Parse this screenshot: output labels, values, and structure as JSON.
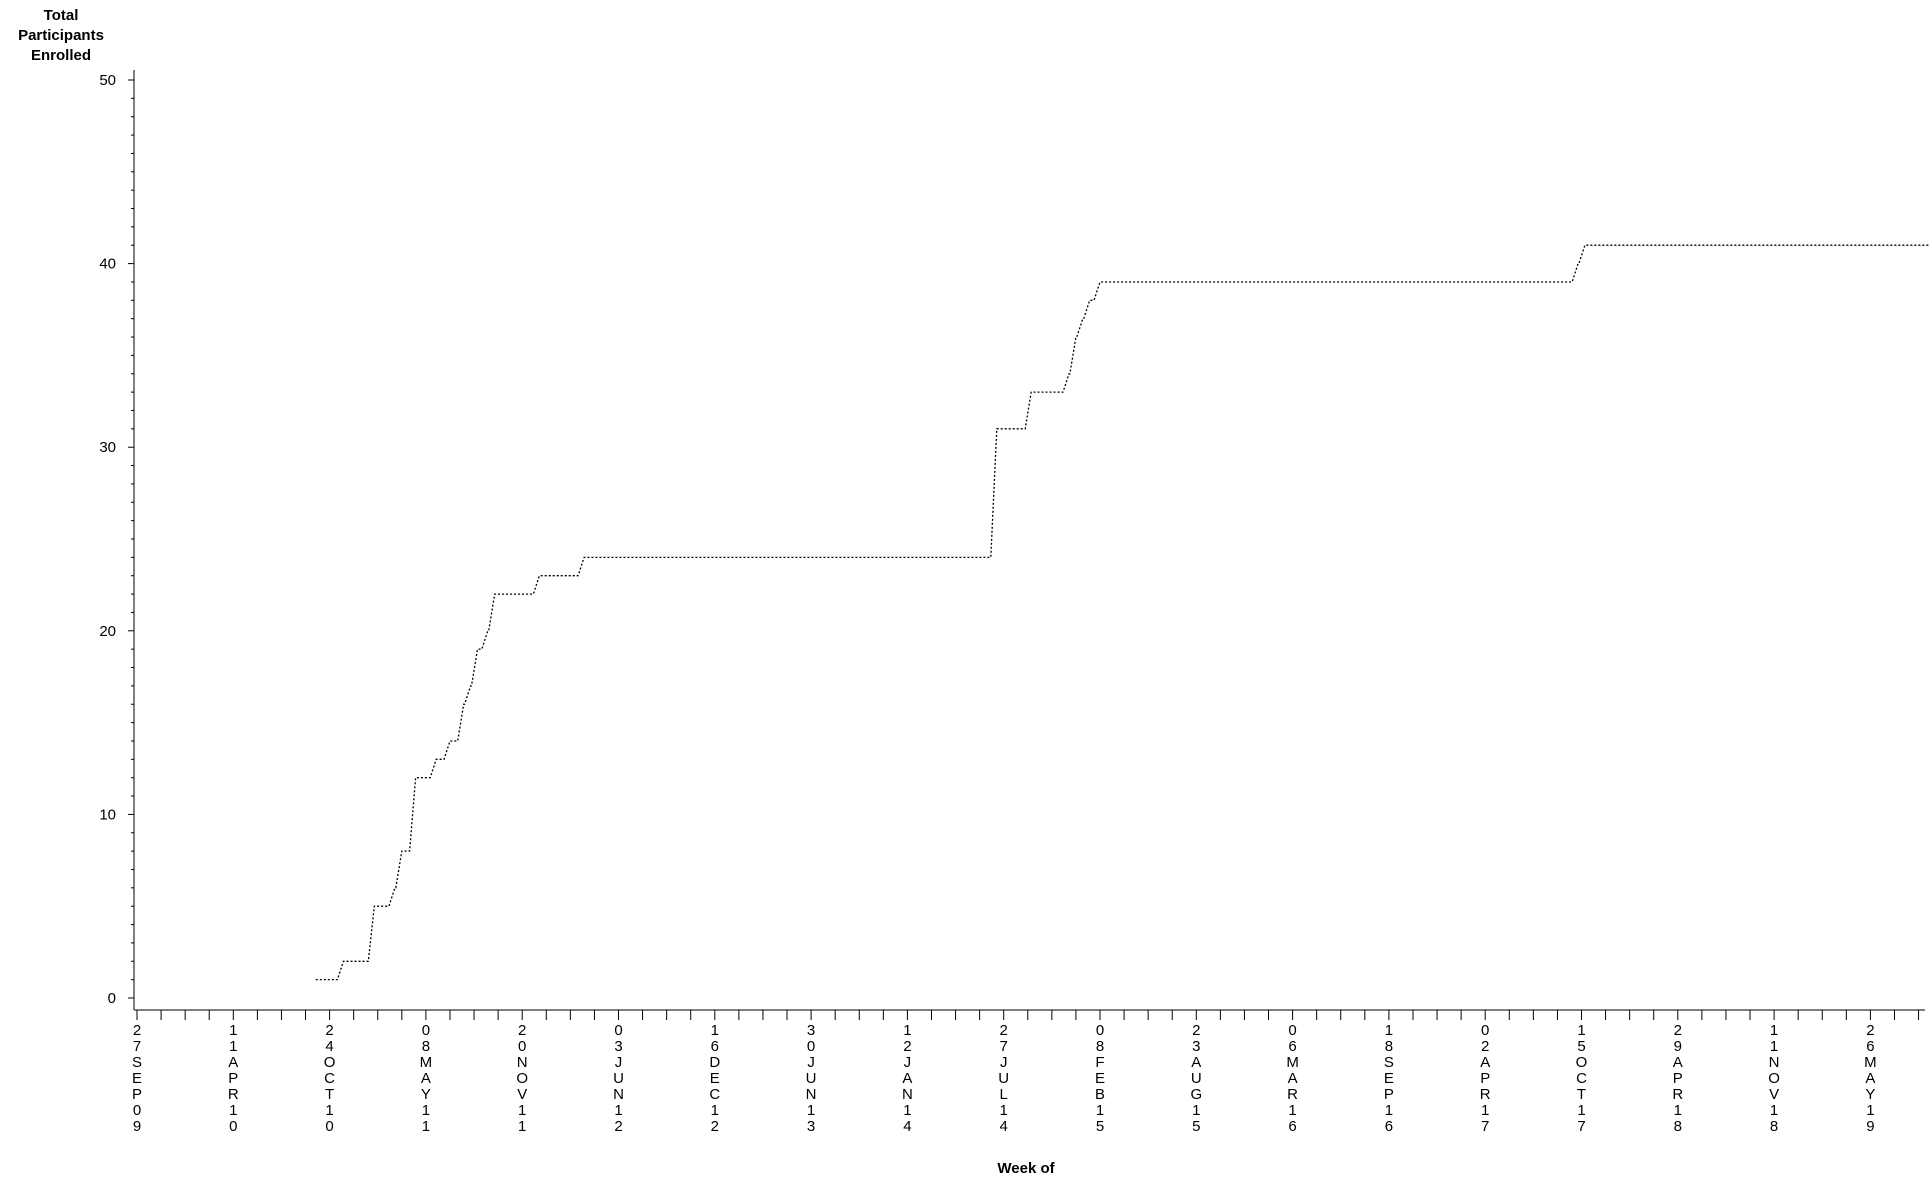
{
  "chart_data": {
    "type": "line",
    "title": "",
    "ylabel_lines": [
      "Total",
      "Participants",
      "Enrolled"
    ],
    "xlabel": "Week of",
    "ylim": [
      0,
      50
    ],
    "y_ticks": [
      0,
      10,
      20,
      30,
      40,
      50
    ],
    "x_tick_labels": [
      "27SEP09",
      "11APR10",
      "24OCT10",
      "08MAY11",
      "20NOV11",
      "03JUN12",
      "16DEC12",
      "30JUN13",
      "12JAN14",
      "27JUL14",
      "08FEB15",
      "23AUG15",
      "06MAR16",
      "18SEP16",
      "02APR17",
      "15OCT17",
      "29APR18",
      "11NOV18",
      "26MAY19"
    ],
    "line_style": "dotted",
    "grid": false,
    "series": [
      {
        "step": true,
        "x": [
          "2010-09-26",
          "2010-11-21",
          "2011-01-23",
          "2011-03-06",
          "2011-03-20",
          "2011-04-17",
          "2011-05-29",
          "2011-06-26",
          "2011-07-24",
          "2011-08-07",
          "2011-08-21",
          "2011-09-11",
          "2011-09-25",
          "2011-10-23",
          "2011-11-13",
          "2011-12-25",
          "2012-01-22",
          "2012-02-26",
          "2012-03-25",
          "2012-05-20",
          "2012-06-10",
          "2012-12-02",
          "2012-12-30",
          "2014-07-13",
          "2014-08-10",
          "2014-09-21",
          "2014-12-07",
          "2014-12-21",
          "2015-01-04",
          "2015-01-18",
          "2015-02-08",
          "2015-03-01",
          "2015-03-22",
          "2015-05-03",
          "2017-10-08",
          "2017-10-22",
          "2019-10-27"
        ],
        "y": [
          1,
          2,
          5,
          6,
          8,
          12,
          13,
          14,
          16,
          17,
          19,
          20,
          22,
          22,
          22,
          23,
          23,
          23,
          24,
          24,
          24,
          24,
          24,
          31,
          31,
          33,
          34,
          36,
          37,
          38,
          39,
          39,
          39,
          39,
          40,
          41,
          41
        ]
      }
    ]
  }
}
